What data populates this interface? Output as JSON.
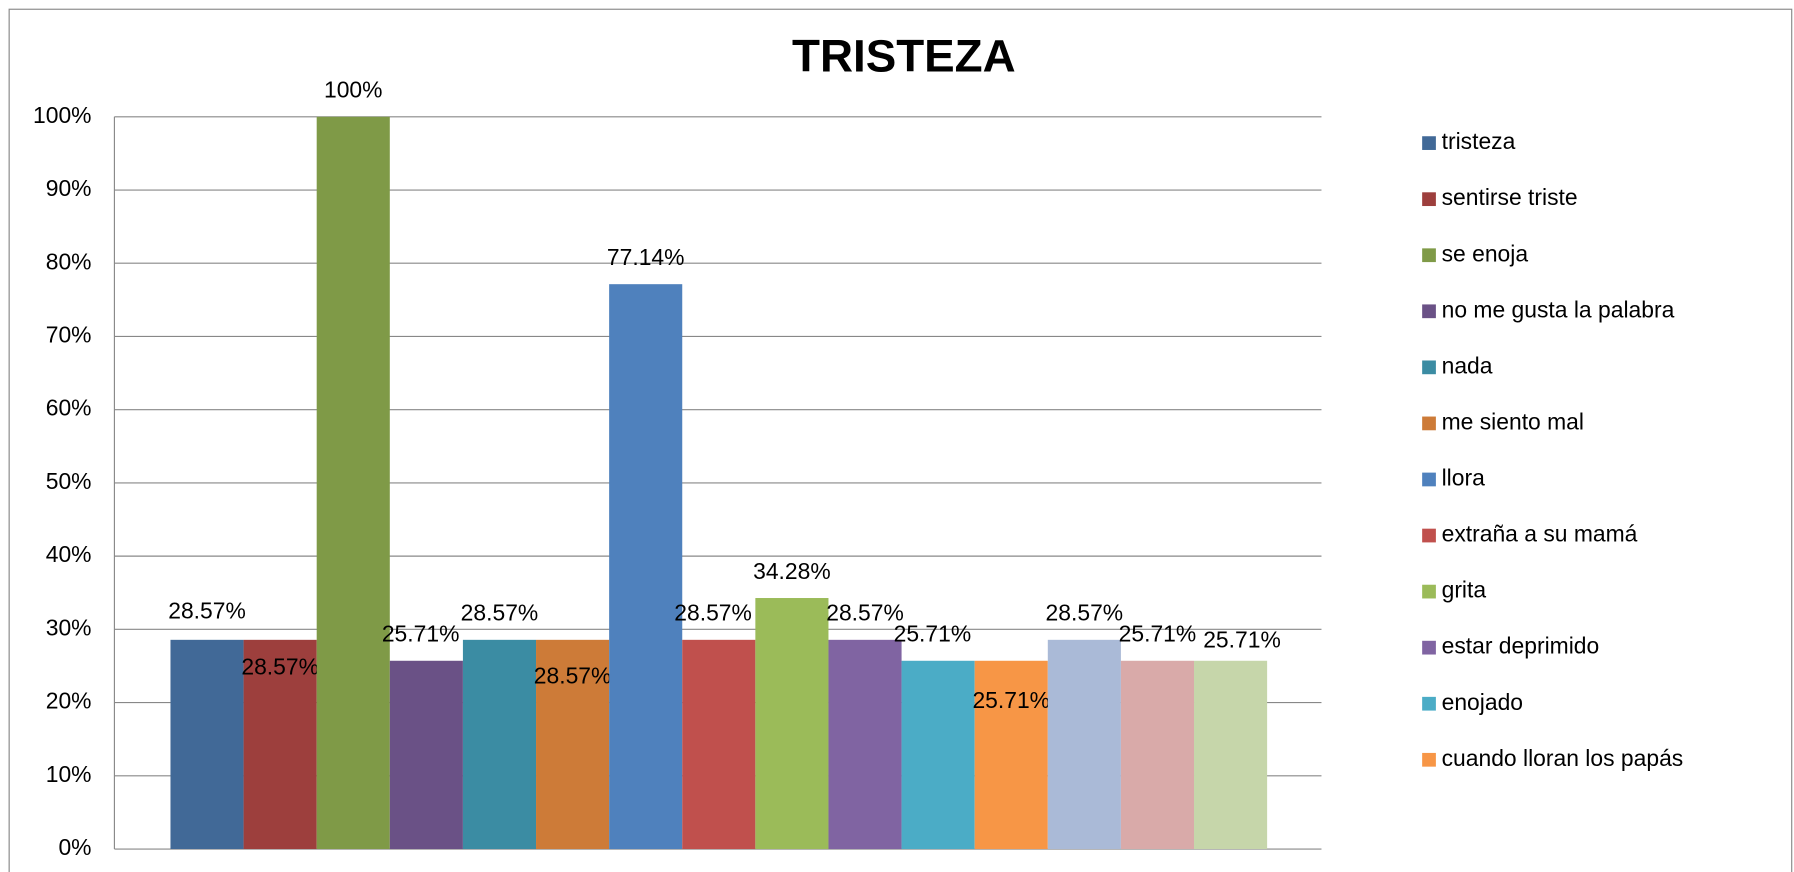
{
  "chart_data": {
    "type": "bar",
    "title": "TRISTEZA",
    "ylim": [
      0,
      100
    ],
    "yticks": [
      {
        "value": 0,
        "label": "0%"
      },
      {
        "value": 10,
        "label": "10%"
      },
      {
        "value": 20,
        "label": "20%"
      },
      {
        "value": 30,
        "label": "30%"
      },
      {
        "value": 40,
        "label": "40%"
      },
      {
        "value": 50,
        "label": "50%"
      },
      {
        "value": 60,
        "label": "60%"
      },
      {
        "value": 70,
        "label": "70%"
      },
      {
        "value": 80,
        "label": "80%"
      },
      {
        "value": 90,
        "label": "90%"
      },
      {
        "value": 100,
        "label": "100%"
      }
    ],
    "grid": true,
    "legend": "right",
    "series": [
      {
        "name": "tristeza",
        "color": "#416997",
        "values": [
          28.57
        ],
        "value_labels": [
          "28.57%"
        ]
      },
      {
        "name": "sentirse triste",
        "color": "#9d3f3d",
        "values": [
          28.57
        ],
        "value_labels": [
          "28.57%"
        ]
      },
      {
        "name": "se enoja",
        "color": "#7f9a47",
        "values": [
          100
        ],
        "value_labels": [
          "100%"
        ]
      },
      {
        "name": "no me gusta la palabra",
        "color": "#6a5186",
        "values": [
          25.71
        ],
        "value_labels": [
          "25.71%"
        ]
      },
      {
        "name": "nada",
        "color": "#3b8ca3",
        "values": [
          28.57
        ],
        "value_labels": [
          "28.57%"
        ]
      },
      {
        "name": "me siento mal",
        "color": "#cd7b38",
        "values": [
          28.57
        ],
        "value_labels": [
          "28.57%"
        ]
      },
      {
        "name": "llora",
        "color": "#4f81bd",
        "values": [
          77.14
        ],
        "value_labels": [
          "77.14%"
        ]
      },
      {
        "name": "extraña a su mamá",
        "color": "#c0504d",
        "values": [
          28.57
        ],
        "value_labels": [
          "28.57%"
        ]
      },
      {
        "name": "grita",
        "color": "#9bbb59",
        "values": [
          34.28
        ],
        "value_labels": [
          "34.28%"
        ]
      },
      {
        "name": "estar deprimido",
        "color": "#8064a2",
        "values": [
          28.57
        ],
        "value_labels": [
          "28.57%"
        ]
      },
      {
        "name": "enojado",
        "color": "#4bacc6",
        "values": [
          25.71
        ],
        "value_labels": [
          "25.71%"
        ]
      },
      {
        "name": "cuando lloran los papás",
        "color": "#f79646",
        "values": [
          25.71
        ],
        "value_labels": [
          "25.71%"
        ]
      },
      {
        "color": "#aabad7",
        "values": [
          28.57
        ],
        "value_labels": [
          "28.57%"
        ]
      },
      {
        "color": "#d9aaa9",
        "values": [
          25.71
        ],
        "value_labels": [
          "25.71%"
        ]
      },
      {
        "color": "#c6d6aa",
        "values": [
          25.71
        ],
        "value_labels": [
          "25.71%"
        ]
      }
    ]
  }
}
